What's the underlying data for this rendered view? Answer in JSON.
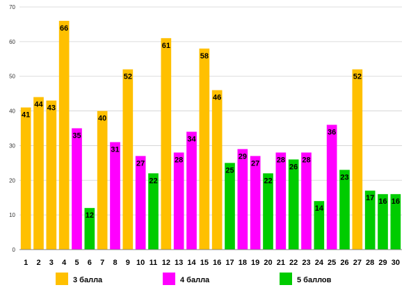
{
  "chart_data": {
    "type": "bar",
    "categories": [
      "1",
      "2",
      "3",
      "4",
      "5",
      "6",
      "7",
      "8",
      "9",
      "10",
      "11",
      "12",
      "13",
      "14",
      "15",
      "16",
      "17",
      "18",
      "19",
      "20",
      "21",
      "22",
      "23",
      "24",
      "25",
      "26",
      "27",
      "28",
      "29",
      "30"
    ],
    "values": [
      41,
      44,
      43,
      66,
      35,
      12,
      40,
      31,
      52,
      27,
      22,
      61,
      28,
      34,
      58,
      46,
      25,
      29,
      27,
      22,
      28,
      26,
      28,
      14,
      36,
      23,
      52,
      17,
      16,
      16
    ],
    "groups": [
      "3",
      "3",
      "3",
      "3",
      "4",
      "5",
      "3",
      "4",
      "3",
      "4",
      "5",
      "3",
      "4",
      "4",
      "3",
      "3",
      "5",
      "4",
      "4",
      "5",
      "4",
      "5",
      "4",
      "5",
      "4",
      "5",
      "3",
      "5",
      "5",
      "5"
    ],
    "legend": [
      {
        "key": "3",
        "label": "3 балла",
        "color": "#FFC000"
      },
      {
        "key": "4",
        "label": "4 балла",
        "color": "#FF00FF"
      },
      {
        "key": "5",
        "label": "5 баллов",
        "color": "#00CC00"
      }
    ],
    "ylim": [
      0,
      70
    ],
    "yticks": [
      0,
      10,
      20,
      30,
      40,
      50,
      60,
      70
    ],
    "grid": true,
    "legend_position": "bottom"
  }
}
